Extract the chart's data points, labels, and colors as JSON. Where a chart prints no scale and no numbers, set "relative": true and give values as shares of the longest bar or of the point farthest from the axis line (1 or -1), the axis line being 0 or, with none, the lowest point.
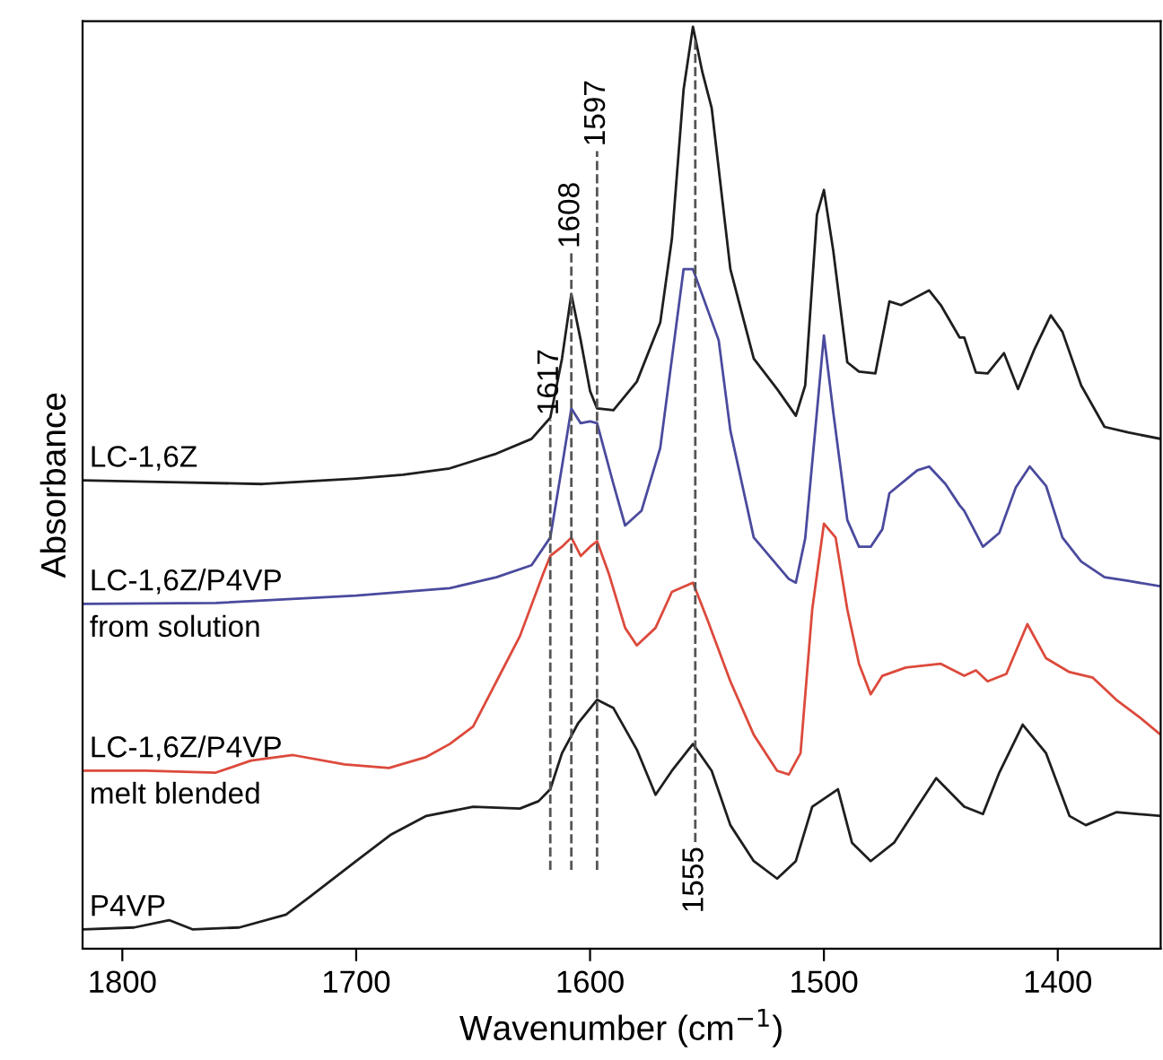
{
  "chart_data": {
    "type": "line",
    "relative": true,
    "xlabel": "Wavenumber (cm$^{−1}$)",
    "ylabel": "Absorbance",
    "xlim": [
      1817,
      1356
    ],
    "xticks": [
      1800,
      1700,
      1600,
      1500,
      1400
    ],
    "grid": false,
    "legend": false,
    "tick_labels": "x",
    "line_style": "solid",
    "marker": "none",
    "series": [
      {
        "name": "LC-1,6Z",
        "color": "#1e1e1e",
        "x": [
          1817,
          1780,
          1740,
          1700,
          1680,
          1660,
          1640,
          1625,
          1617,
          1612,
          1608,
          1604,
          1600,
          1597,
          1590,
          1580,
          1570,
          1565,
          1560,
          1556,
          1552,
          1548,
          1540,
          1530,
          1520,
          1512,
          1508,
          1503,
          1500,
          1496,
          1490,
          1485,
          1478,
          1472,
          1467,
          1455,
          1450,
          1442,
          1440,
          1435,
          1430,
          1423,
          1417,
          1410,
          1403,
          1398,
          1390,
          1380,
          1370,
          1356
        ],
        "values": [
          0.508,
          0.506,
          0.504,
          0.51,
          0.514,
          0.521,
          0.537,
          0.553,
          0.576,
          0.64,
          0.71,
          0.66,
          0.605,
          0.586,
          0.584,
          0.615,
          0.679,
          0.77,
          0.932,
          1.0,
          0.951,
          0.912,
          0.737,
          0.64,
          0.607,
          0.578,
          0.611,
          0.796,
          0.823,
          0.757,
          0.636,
          0.626,
          0.624,
          0.702,
          0.698,
          0.714,
          0.698,
          0.663,
          0.663,
          0.625,
          0.624,
          0.646,
          0.607,
          0.65,
          0.687,
          0.669,
          0.611,
          0.566,
          0.56,
          0.553
        ]
      },
      {
        "name": "LC-1,6Z/P4VP\nfrom solution",
        "color": "#4a4a9e",
        "x": [
          1817,
          1760,
          1700,
          1660,
          1640,
          1625,
          1617,
          1612,
          1608,
          1604,
          1600,
          1597,
          1590,
          1585,
          1578,
          1570,
          1565,
          1560,
          1556,
          1550,
          1545,
          1540,
          1530,
          1515,
          1512,
          1508,
          1503,
          1500,
          1496,
          1490,
          1485,
          1480,
          1475,
          1472,
          1460,
          1455,
          1448,
          1442,
          1440,
          1432,
          1425,
          1418,
          1412,
          1405,
          1398,
          1390,
          1380,
          1370,
          1356
        ],
        "values": [
          0.374,
          0.375,
          0.383,
          0.391,
          0.403,
          0.416,
          0.446,
          0.523,
          0.586,
          0.57,
          0.572,
          0.57,
          0.504,
          0.459,
          0.475,
          0.543,
          0.64,
          0.737,
          0.737,
          0.695,
          0.66,
          0.562,
          0.446,
          0.401,
          0.397,
          0.445,
          0.582,
          0.665,
          0.582,
          0.465,
          0.436,
          0.436,
          0.455,
          0.494,
          0.519,
          0.523,
          0.504,
          0.481,
          0.475,
          0.436,
          0.451,
          0.5,
          0.523,
          0.502,
          0.446,
          0.42,
          0.403,
          0.399,
          0.393
        ]
      },
      {
        "name": "LC-1,6Z/P4VP\nmelt blended",
        "color": "#dc4a3c",
        "x": [
          1817,
          1790,
          1760,
          1745,
          1727,
          1705,
          1686,
          1670,
          1660,
          1650,
          1640,
          1630,
          1620,
          1617,
          1612,
          1608,
          1604,
          1600,
          1597,
          1592,
          1585,
          1580,
          1572,
          1565,
          1556,
          1550,
          1540,
          1530,
          1520,
          1515,
          1510,
          1505,
          1500,
          1495,
          1490,
          1485,
          1480,
          1475,
          1465,
          1450,
          1440,
          1435,
          1430,
          1422,
          1413,
          1405,
          1395,
          1385,
          1375,
          1365,
          1356
        ],
        "values": [
          0.193,
          0.193,
          0.191,
          0.204,
          0.21,
          0.2,
          0.196,
          0.208,
          0.222,
          0.241,
          0.29,
          0.339,
          0.407,
          0.426,
          0.436,
          0.446,
          0.426,
          0.436,
          0.442,
          0.407,
          0.348,
          0.329,
          0.348,
          0.387,
          0.397,
          0.358,
          0.29,
          0.232,
          0.193,
          0.189,
          0.212,
          0.368,
          0.461,
          0.446,
          0.368,
          0.309,
          0.276,
          0.296,
          0.305,
          0.309,
          0.296,
          0.302,
          0.29,
          0.298,
          0.352,
          0.315,
          0.3,
          0.294,
          0.27,
          0.251,
          0.232
        ]
      },
      {
        "name": "P4VP",
        "color": "#1e1e1e",
        "x": [
          1817,
          1795,
          1780,
          1770,
          1750,
          1730,
          1720,
          1700,
          1685,
          1670,
          1650,
          1630,
          1622,
          1617,
          1612,
          1605,
          1597,
          1590,
          1580,
          1572,
          1565,
          1556,
          1548,
          1540,
          1530,
          1520,
          1512,
          1505,
          1494,
          1488,
          1480,
          1470,
          1460,
          1452,
          1440,
          1432,
          1425,
          1415,
          1405,
          1395,
          1388,
          1375,
          1356
        ],
        "values": [
          0.021,
          0.023,
          0.031,
          0.021,
          0.023,
          0.037,
          0.056,
          0.095,
          0.124,
          0.144,
          0.154,
          0.152,
          0.16,
          0.173,
          0.212,
          0.245,
          0.27,
          0.261,
          0.216,
          0.167,
          0.193,
          0.222,
          0.193,
          0.134,
          0.095,
          0.076,
          0.095,
          0.154,
          0.173,
          0.115,
          0.095,
          0.115,
          0.154,
          0.185,
          0.154,
          0.146,
          0.191,
          0.243,
          0.212,
          0.144,
          0.134,
          0.148,
          0.144
        ]
      }
    ],
    "ref_lines": [
      {
        "axis": "x",
        "value": 1617,
        "label": "1617",
        "line_style": "dashed",
        "color": "#555555"
      },
      {
        "axis": "x",
        "value": 1608,
        "label": "1608",
        "line_style": "dashed",
        "color": "#555555"
      },
      {
        "axis": "x",
        "value": 1597,
        "label": "1597",
        "line_style": "dashed",
        "color": "#555555"
      },
      {
        "axis": "x",
        "value": 1555,
        "label": "1555",
        "line_style": "dashed",
        "color": "#555555"
      }
    ]
  }
}
